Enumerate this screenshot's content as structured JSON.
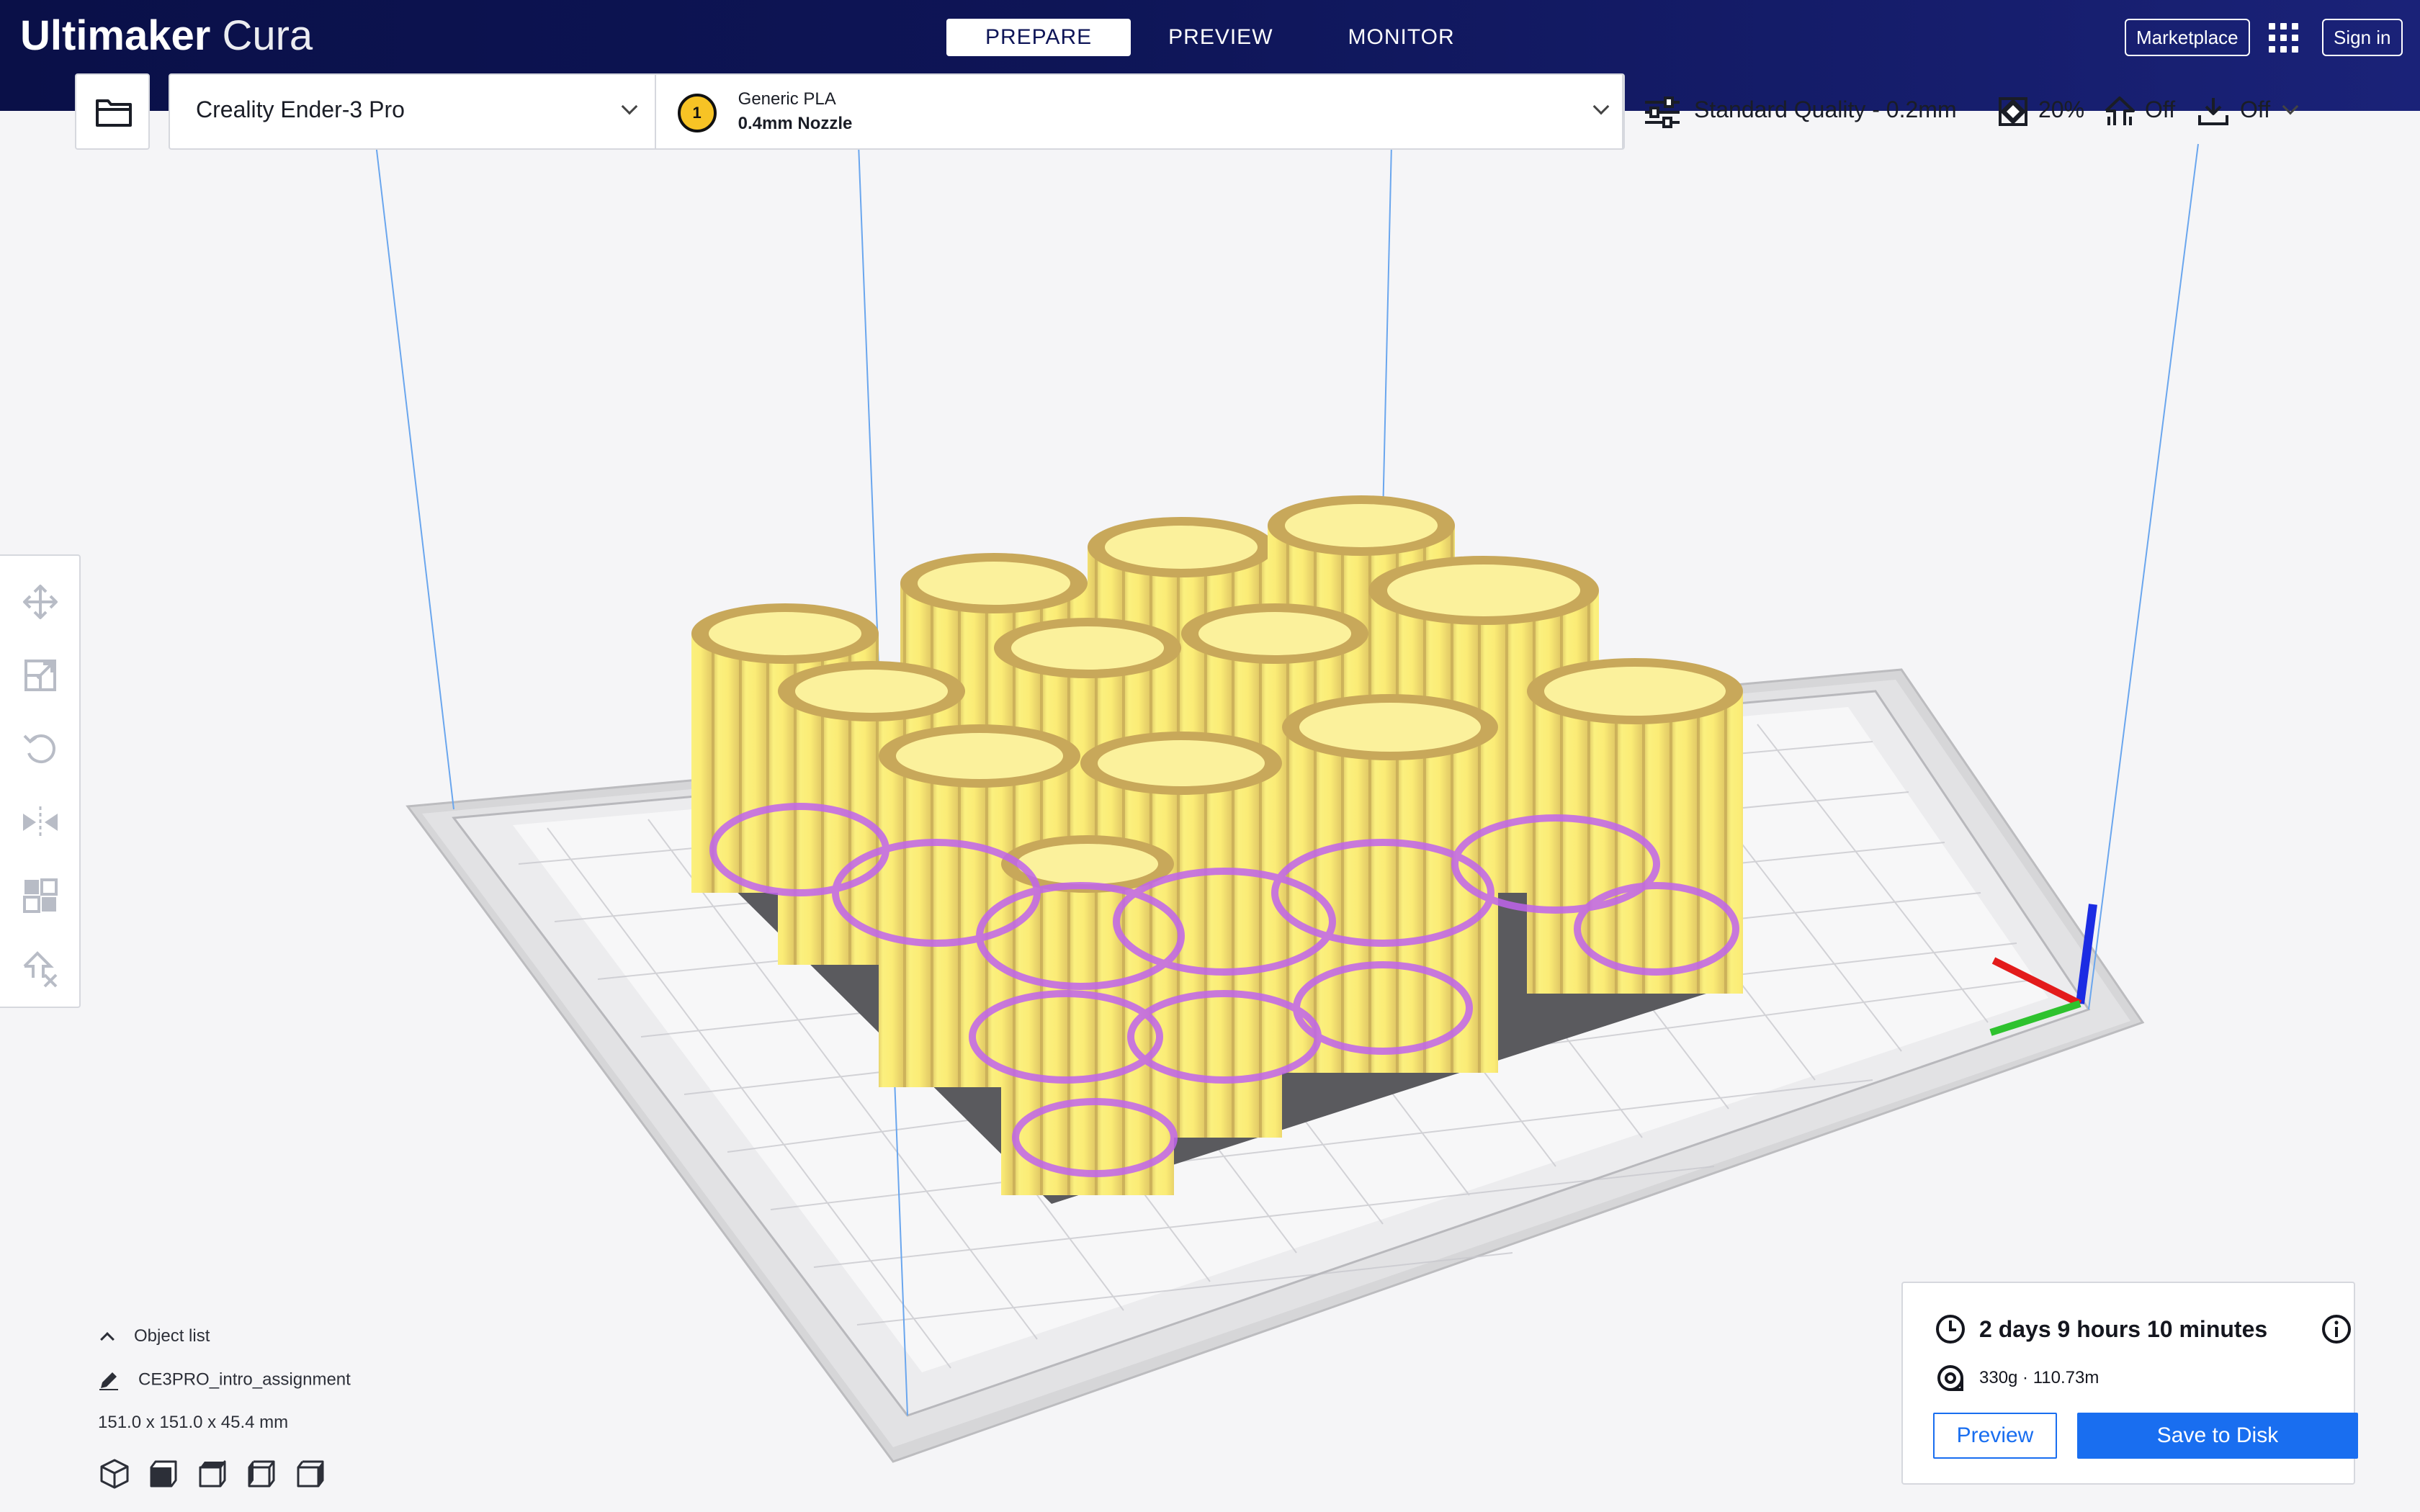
{
  "app": {
    "title_bold": "Ultimaker",
    "title_regular": "Cura"
  },
  "stages": [
    {
      "label": "PREPARE",
      "active": true
    },
    {
      "label": "PREVIEW",
      "active": false
    },
    {
      "label": "MONITOR",
      "active": false
    }
  ],
  "header": {
    "marketplace_label": "Marketplace",
    "apps_icon": "grid-icon",
    "signin_label": "Sign in"
  },
  "printer": {
    "name": "Creality Ender-3 Pro"
  },
  "material": {
    "extruder_number": "1",
    "extruder_color": "#f7c325",
    "name": "Generic PLA",
    "nozzle": "0.4mm Nozzle"
  },
  "print_settings": {
    "profile": "Standard Quality - 0.2mm",
    "infill": "20%",
    "support": "Off",
    "adhesion": "Off"
  },
  "tools": [
    {
      "icon": "move-icon"
    },
    {
      "icon": "scale-icon"
    },
    {
      "icon": "rotate-icon"
    },
    {
      "icon": "mirror-icon"
    },
    {
      "icon": "per-model-settings-icon"
    },
    {
      "icon": "support-blocker-icon"
    }
  ],
  "object_list": {
    "header_label": "Object list",
    "object_name": "CE3PRO_intro_assignment",
    "dimensions": "151.0 x 151.0 x 45.4 mm"
  },
  "view_buttons": [
    {
      "icon": "3d-view-icon"
    },
    {
      "icon": "front-view-icon"
    },
    {
      "icon": "top-view-icon"
    },
    {
      "icon": "left-view-icon"
    },
    {
      "icon": "right-view-icon"
    }
  ],
  "output": {
    "print_time": "2 days 9 hours 10 minutes",
    "material_usage": "330g · 110.73m",
    "preview_label": "Preview",
    "save_label": "Save to Disk"
  },
  "colors": {
    "header_bg": "#0e1557",
    "accent_blue": "#196ef0",
    "model_yellow": "#f8ea7c",
    "model_shadow": "#c8ac58",
    "overhang_purple": "#c064ec",
    "axis_x": "#e31b1b",
    "axis_y": "#2ec22e",
    "axis_z": "#1b2ce3"
  }
}
